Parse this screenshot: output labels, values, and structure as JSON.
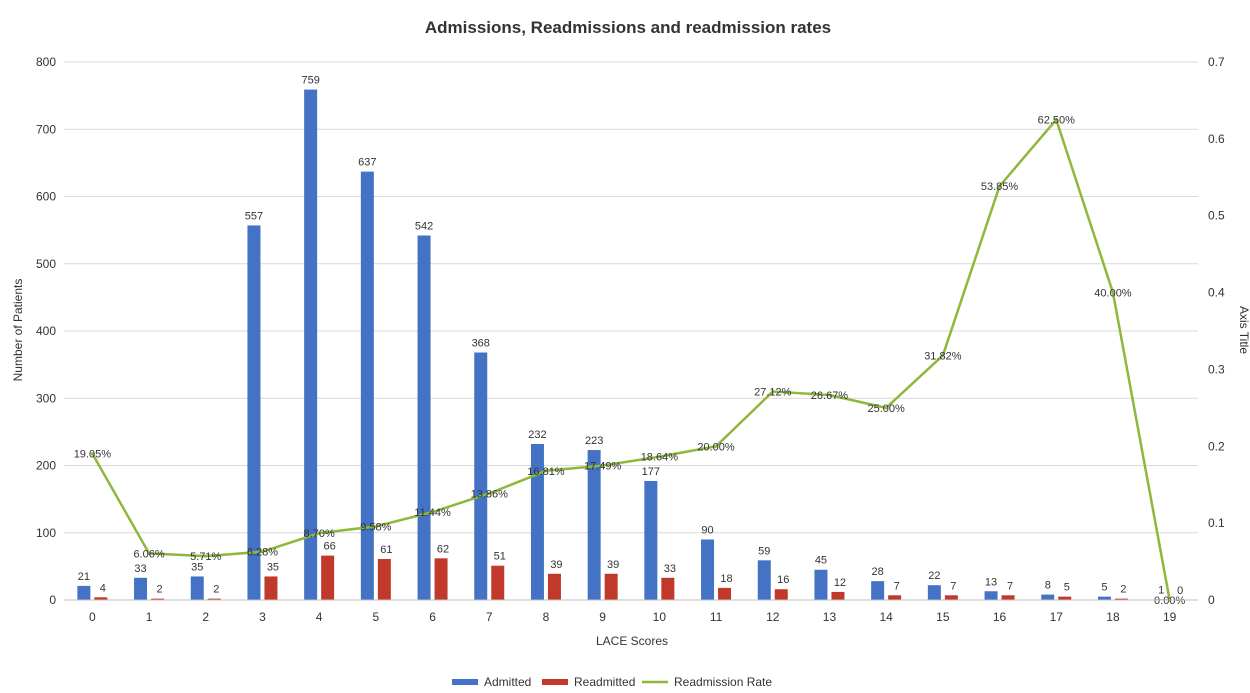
{
  "chart_data": {
    "type": "bar",
    "title": "Admissions, Readmissions and readmission rates",
    "xlabel": "LACE Scores",
    "ylabel": "Number of Patients",
    "y2label": "Axis Title",
    "categories": [
      "0",
      "1",
      "2",
      "3",
      "4",
      "5",
      "6",
      "7",
      "8",
      "9",
      "10",
      "11",
      "12",
      "13",
      "14",
      "15",
      "16",
      "17",
      "18",
      "19"
    ],
    "ylim": [
      0,
      800
    ],
    "yticks": [
      "0",
      "100",
      "200",
      "300",
      "400",
      "500",
      "600",
      "700",
      "800"
    ],
    "y2lim": [
      0,
      0.7
    ],
    "y2ticks": [
      "0",
      "0.1",
      "0.2",
      "0.3",
      "0.4",
      "0.5",
      "0.6",
      "0.7"
    ],
    "grid": true,
    "legend_position": "bottom",
    "series": [
      {
        "name": "Admitted",
        "kind": "bar",
        "color": "#4472C4",
        "values": [
          21,
          33,
          35,
          557,
          759,
          637,
          542,
          368,
          232,
          223,
          177,
          90,
          59,
          45,
          28,
          22,
          13,
          8,
          5,
          1
        ],
        "labels": [
          "21",
          "33",
          "35",
          "557",
          "759",
          "637",
          "542",
          "368",
          "232",
          "223",
          "177",
          "90",
          "59",
          "45",
          "28",
          "22",
          "13",
          "8",
          "5",
          "1"
        ]
      },
      {
        "name": "Readmitted",
        "kind": "bar",
        "color": "#C0392B",
        "values": [
          4,
          2,
          2,
          35,
          66,
          61,
          62,
          51,
          39,
          39,
          33,
          18,
          16,
          12,
          7,
          7,
          7,
          5,
          2,
          0
        ],
        "labels": [
          "4",
          "2",
          "2",
          "35",
          "66",
          "61",
          "62",
          "51",
          "39",
          "39",
          "33",
          "18",
          "16",
          "12",
          "7",
          "7",
          "7",
          "5",
          "2",
          "0"
        ]
      },
      {
        "name": "Readmission Rate",
        "kind": "line",
        "axis": "secondary",
        "color": "#8DB83A",
        "values": [
          0.1905,
          0.0606,
          0.0571,
          0.0628,
          0.087,
          0.0958,
          0.1144,
          0.1386,
          0.1681,
          0.1749,
          0.1864,
          0.2,
          0.2712,
          0.2667,
          0.25,
          0.3182,
          0.5385,
          0.625,
          0.4,
          0
        ],
        "labels": [
          "19.05%",
          "6.06%",
          "5.71%",
          "6.28%",
          "8.70%",
          "9.58%",
          "11.44%",
          "13.86%",
          "16.81%",
          "17.49%",
          "18.64%",
          "20.00%",
          "27.12%",
          "26.67%",
          "25.00%",
          "31.82%",
          "53.85%",
          "62.50%",
          "40.00%",
          "0.00%"
        ]
      }
    ]
  }
}
